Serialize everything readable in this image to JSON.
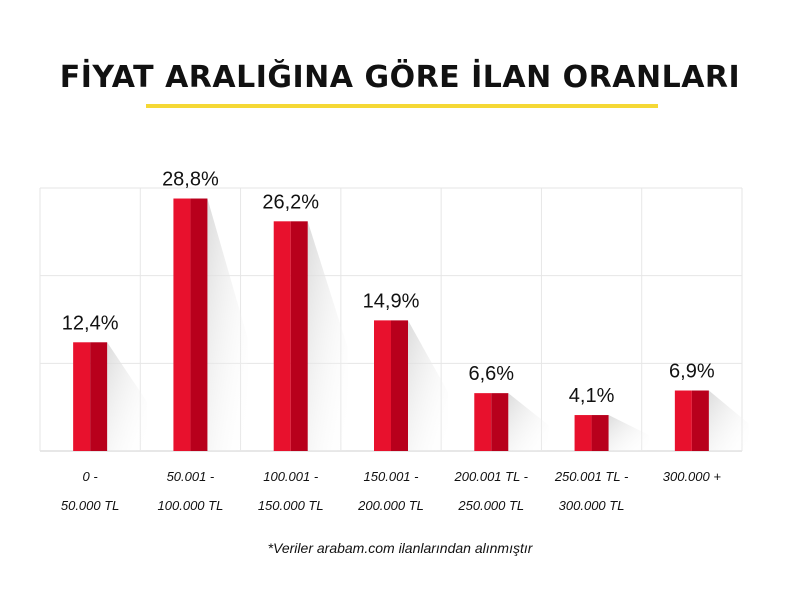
{
  "header": {
    "title": "FİYAT ARALIĞINA GÖRE İLAN ORANLARI"
  },
  "footnote": "*Veriler arabam.com ilanlarından alınmıştır",
  "colors": {
    "bar_light": "#e8112d",
    "bar_dark": "#b8001c",
    "accent": "#f5d835",
    "grid": "#e6e6e6"
  },
  "chart_data": {
    "type": "bar",
    "title": "FİYAT ARALIĞINA GÖRE İLAN ORANLARI",
    "categories": [
      [
        "0 -",
        "50.000 TL"
      ],
      [
        "50.001 -",
        "100.000 TL"
      ],
      [
        "100.001 -",
        "150.000 TL"
      ],
      [
        "150.001 -",
        "200.000 TL"
      ],
      [
        "200.001 TL -",
        "250.000 TL"
      ],
      [
        "250.001 TL -",
        "300.000 TL"
      ],
      [
        "300.000 +"
      ]
    ],
    "values": [
      12.4,
      28.8,
      26.2,
      14.9,
      6.6,
      4.1,
      6.9
    ],
    "value_labels": [
      "12,4%",
      "28,8%",
      "26,2%",
      "14,9%",
      "6,6%",
      "4,1%",
      "6,9%"
    ],
    "unit": "%",
    "ylim": [
      0,
      30
    ],
    "grid": true,
    "legend": "none"
  }
}
